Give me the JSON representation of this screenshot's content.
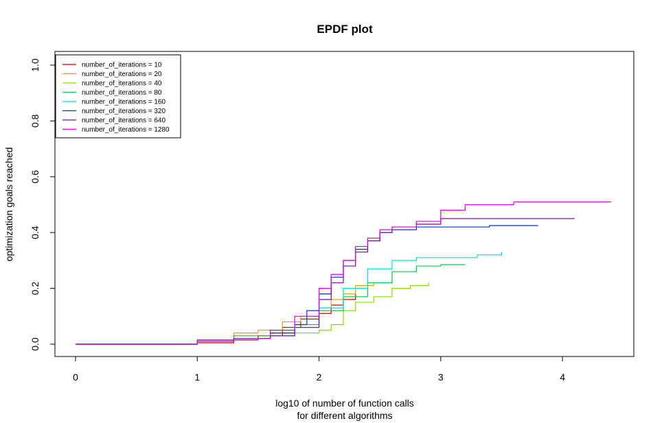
{
  "chart_data": {
    "type": "line",
    "step": true,
    "title": "EPDF plot",
    "xlabel": [
      "log10 of number of function calls",
      "for different algorithms"
    ],
    "ylabel": "optimization goals reached",
    "xlim": [
      0,
      4.4
    ],
    "ylim": [
      0,
      1.0
    ],
    "xticks": [
      0,
      1,
      2,
      3,
      4
    ],
    "xtick_labels": [
      "0",
      "1",
      "2",
      "3",
      "4"
    ],
    "yticks": [
      0,
      0.2,
      0.4,
      0.6,
      0.8,
      1.0
    ],
    "ytick_labels": [
      "0.0",
      "0.2",
      "0.4",
      "0.6",
      "0.8",
      "1.0"
    ],
    "grid": false,
    "legend": "top-left",
    "series": [
      {
        "name": "number_of_iterations = 10",
        "color": "#cc0000",
        "x": [
          0,
          0.55,
          1.0,
          1.3,
          1.5,
          1.7,
          1.85,
          2.0,
          2.1,
          2.2,
          2.3
        ],
        "y": [
          0,
          0.0,
          0.005,
          0.015,
          0.03,
          0.06,
          0.09,
          0.11,
          0.14,
          0.16,
          0.18
        ]
      },
      {
        "name": "number_of_iterations = 20",
        "color": "#e8a000",
        "x": [
          0,
          0.55,
          1.0,
          1.3,
          1.5,
          1.7,
          1.85,
          2.0,
          2.1,
          2.2,
          2.3,
          2.45,
          2.6
        ],
        "y": [
          0,
          0.0,
          0.01,
          0.04,
          0.05,
          0.08,
          0.1,
          0.13,
          0.16,
          0.18,
          0.21,
          0.22,
          0.22
        ]
      },
      {
        "name": "number_of_iterations = 40",
        "color": "#88dd00",
        "x": [
          0,
          0.55,
          1.0,
          1.3,
          1.6,
          1.8,
          2.0,
          2.1,
          2.2,
          2.3,
          2.45,
          2.6,
          2.75,
          2.9
        ],
        "y": [
          0,
          0.0,
          0.01,
          0.02,
          0.03,
          0.04,
          0.05,
          0.07,
          0.12,
          0.15,
          0.17,
          0.2,
          0.21,
          0.22
        ]
      },
      {
        "name": "number_of_iterations = 80",
        "color": "#00cc44",
        "x": [
          0,
          0.55,
          1.0,
          1.3,
          1.6,
          1.8,
          2.0,
          2.2,
          2.4,
          2.6,
          2.8,
          3.0,
          3.2
        ],
        "y": [
          0,
          0.0,
          0.01,
          0.03,
          0.04,
          0.07,
          0.12,
          0.17,
          0.22,
          0.26,
          0.28,
          0.285,
          0.285
        ]
      },
      {
        "name": "number_of_iterations = 160",
        "color": "#00dddd",
        "x": [
          0,
          0.55,
          1.0,
          1.3,
          1.6,
          1.8,
          2.0,
          2.2,
          2.4,
          2.6,
          2.8,
          3.0,
          3.3,
          3.5
        ],
        "y": [
          0,
          0.0,
          0.01,
          0.02,
          0.03,
          0.06,
          0.13,
          0.2,
          0.27,
          0.3,
          0.31,
          0.31,
          0.32,
          0.33
        ]
      },
      {
        "name": "number_of_iterations = 320",
        "color": "#0033bb",
        "x": [
          0,
          0.55,
          1.0,
          1.3,
          1.6,
          1.8,
          1.9,
          2.0,
          2.1,
          2.2,
          2.3,
          2.4,
          2.5,
          2.6,
          2.8,
          3.0,
          3.4,
          3.8
        ],
        "y": [
          0,
          0.0,
          0.01,
          0.02,
          0.04,
          0.07,
          0.12,
          0.18,
          0.24,
          0.3,
          0.34,
          0.37,
          0.4,
          0.41,
          0.42,
          0.42,
          0.425,
          0.425
        ]
      },
      {
        "name": "number_of_iterations = 640",
        "color": "#8800aa",
        "x": [
          0,
          0.55,
          1.0,
          1.3,
          1.6,
          1.8,
          2.0,
          2.1,
          2.2,
          2.3,
          2.4,
          2.5,
          2.6,
          2.8,
          3.0,
          3.5,
          4.1
        ],
        "y": [
          0,
          0.0,
          0.015,
          0.02,
          0.03,
          0.06,
          0.16,
          0.22,
          0.28,
          0.33,
          0.37,
          0.4,
          0.42,
          0.43,
          0.45,
          0.45,
          0.45
        ]
      },
      {
        "name": "number_of_iterations = 1280",
        "color": "#dd00dd",
        "x": [
          0,
          0.55,
          1.0,
          1.3,
          1.6,
          1.8,
          2.0,
          2.1,
          2.2,
          2.3,
          2.4,
          2.5,
          2.6,
          2.8,
          3.0,
          3.2,
          3.6,
          4.4
        ],
        "y": [
          0,
          0.0,
          0.01,
          0.02,
          0.05,
          0.1,
          0.2,
          0.25,
          0.3,
          0.35,
          0.38,
          0.41,
          0.42,
          0.44,
          0.48,
          0.5,
          0.51,
          0.51
        ]
      }
    ]
  }
}
